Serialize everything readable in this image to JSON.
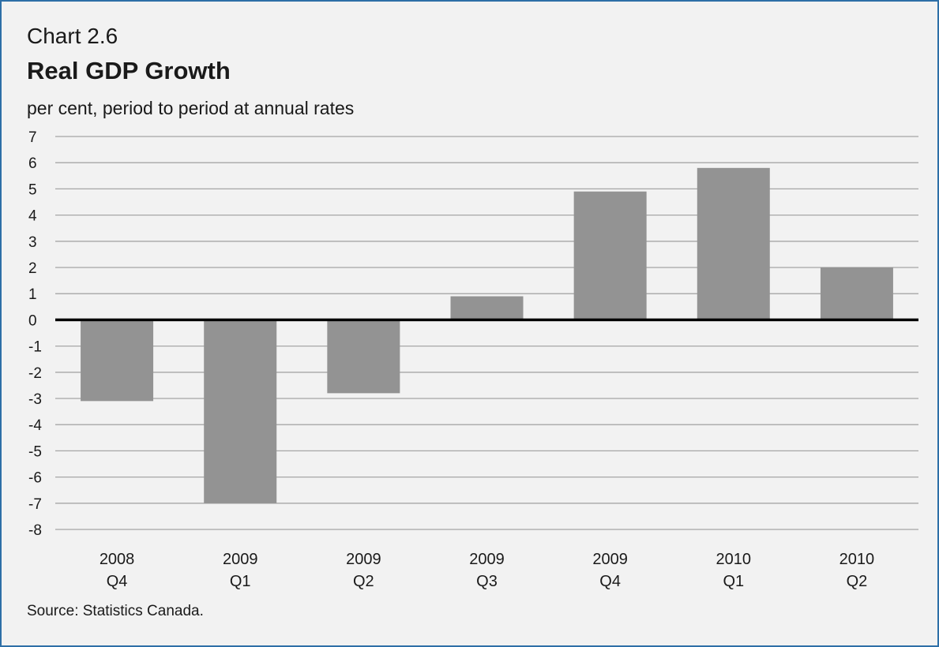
{
  "header": {
    "chart_label": "Chart 2.6",
    "title": "Real GDP Growth",
    "unit_label": "per cent, period to period at annual rates"
  },
  "footer": {
    "source": "Source: Statistics Canada."
  },
  "chart_data": {
    "type": "bar",
    "title": "Real GDP Growth",
    "ylabel": "per cent, period to period at annual rates",
    "xlabel": "",
    "categories": [
      [
        "2008",
        "Q4"
      ],
      [
        "2009",
        "Q1"
      ],
      [
        "2009",
        "Q2"
      ],
      [
        "2009",
        "Q3"
      ],
      [
        "2009",
        "Q4"
      ],
      [
        "2010",
        "Q1"
      ],
      [
        "2010",
        "Q2"
      ]
    ],
    "values": [
      -3.1,
      -7.0,
      -2.8,
      0.9,
      4.9,
      5.8,
      2.0
    ],
    "ylim": [
      -8,
      7
    ],
    "yticks": [
      "7",
      "6",
      "5",
      "4",
      "3",
      "2",
      "1",
      "0",
      "-1",
      "-2",
      "-3",
      "-4",
      "-5",
      "-6",
      "-7",
      "-8"
    ],
    "grid": true,
    "legend": "none",
    "colors": {
      "bar": "#939393",
      "grid": "#a6a6a6",
      "zero_line": "#000000"
    }
  }
}
